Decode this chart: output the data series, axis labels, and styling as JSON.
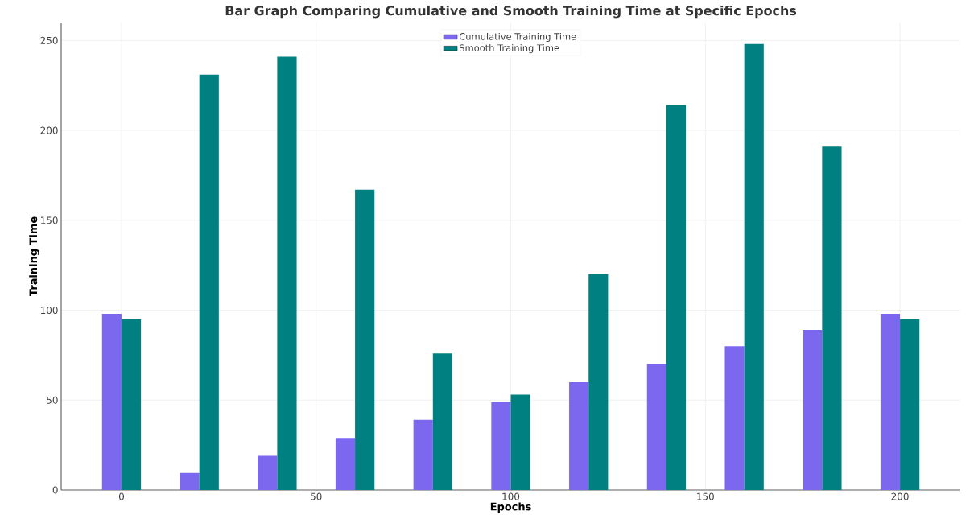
{
  "chart_data": {
    "type": "bar",
    "title": "Bar Graph Comparing Cumulative and Smooth Training Time at Specific Epochs",
    "xlabel": "Epochs",
    "ylabel": "Training Time",
    "x": [
      0,
      20,
      40,
      60,
      80,
      100,
      120,
      140,
      160,
      180,
      200
    ],
    "series": [
      {
        "name": "Cumulative Training Time",
        "color": "#7b68ee",
        "values": [
          98,
          9.5,
          19,
          29,
          39,
          49,
          60,
          70,
          80,
          89,
          98
        ]
      },
      {
        "name": "Smooth Training Time",
        "color": "#008080",
        "values": [
          95,
          231,
          241,
          167,
          76,
          53,
          120,
          214,
          248,
          191,
          95
        ]
      }
    ],
    "xlim": [
      -15.5,
      215.5
    ],
    "ylim": [
      0,
      260
    ],
    "xticks": [
      0,
      50,
      100,
      150,
      200
    ],
    "yticks": [
      0,
      50,
      100,
      150,
      200,
      250
    ],
    "grid": true,
    "legend": "top"
  }
}
